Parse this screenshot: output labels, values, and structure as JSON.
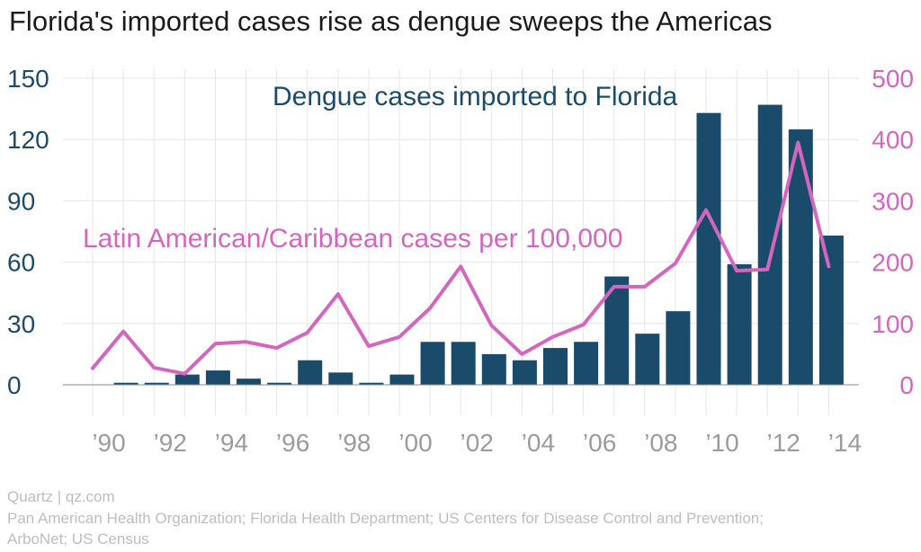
{
  "title": "Florida's imported cases rise as dengue sweeps the Americas",
  "credit": {
    "publisher": "Quartz | qz.com",
    "sources_line1": "Pan American Health Organization; Florida Health Department; US Centers for Disease Control and Prevention;",
    "sources_line2": "ArboNet; US Census"
  },
  "colors": {
    "bars": "#1b4b6b",
    "line": "#d466c0",
    "grid": "#e6e6e6",
    "tick_text": "#9b9b9b"
  },
  "chart_data": {
    "type": "bar",
    "years": [
      1990,
      1991,
      1992,
      1993,
      1994,
      1995,
      1996,
      1997,
      1998,
      1999,
      2000,
      2001,
      2002,
      2003,
      2004,
      2005,
      2006,
      2007,
      2008,
      2009,
      2010,
      2011,
      2012,
      2013,
      2014
    ],
    "x_tick_labels": [
      "’90",
      "’92",
      "’94",
      "’96",
      "’98",
      "’00",
      "’02",
      "’04",
      "’06",
      "’08",
      "’10",
      "’12",
      "’14"
    ],
    "series": [
      {
        "name": "Dengue cases imported to Florida",
        "type": "bar",
        "axis": "left",
        "values": [
          0,
          1,
          1,
          5,
          7,
          3,
          1,
          12,
          6,
          1,
          5,
          21,
          21,
          15,
          12,
          18,
          21,
          53,
          25,
          36,
          133,
          59,
          137,
          125,
          73
        ]
      },
      {
        "name": "Latin American/Caribbean cases per 100,000",
        "type": "line",
        "axis": "right",
        "values": [
          27,
          87,
          28,
          18,
          67,
          70,
          60,
          85,
          148,
          63,
          78,
          125,
          193,
          97,
          50,
          78,
          98,
          160,
          160,
          198,
          285,
          186,
          188,
          395,
          193
        ]
      }
    ],
    "y_left": {
      "ylim": [
        0,
        150
      ],
      "ticks": [
        0,
        30,
        60,
        90,
        120,
        150
      ]
    },
    "y_right": {
      "ylim": [
        0,
        500
      ],
      "ticks": [
        0,
        100,
        200,
        300,
        400,
        500
      ]
    },
    "grid": true
  }
}
